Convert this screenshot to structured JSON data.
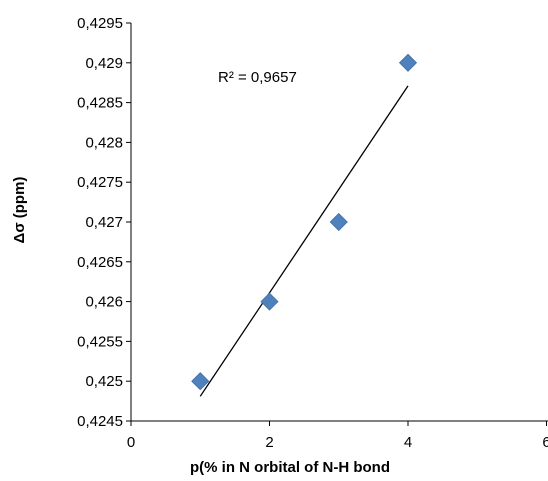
{
  "chart_data": {
    "type": "scatter",
    "title": "",
    "xlabel": "p(% in N orbital of N-H bond",
    "ylabel": "Δσ (ppm)",
    "xlim": [
      0,
      6
    ],
    "ylim": [
      0.4245,
      0.4295
    ],
    "x_ticks": [
      "0",
      "2",
      "4",
      "6"
    ],
    "y_ticks": [
      "0,4245",
      "0,425",
      "0,4255",
      "0,426",
      "0,4265",
      "0,427",
      "0,4275",
      "0,428",
      "0,4285",
      "0,429",
      "0,4295"
    ],
    "grid": false,
    "legend": "none",
    "series": [
      {
        "x": [
          1,
          2,
          3,
          4
        ],
        "y": [
          0.425,
          0.426,
          0.427,
          0.429
        ],
        "marker": "diamond",
        "color": "#4f81bd"
      }
    ],
    "trendline": {
      "type": "linear",
      "x_range": [
        1,
        4
      ],
      "y_range": [
        0.42481,
        0.42871
      ],
      "color": "#000000"
    },
    "annotations": [
      {
        "text": "R² = 0,9657"
      }
    ]
  }
}
